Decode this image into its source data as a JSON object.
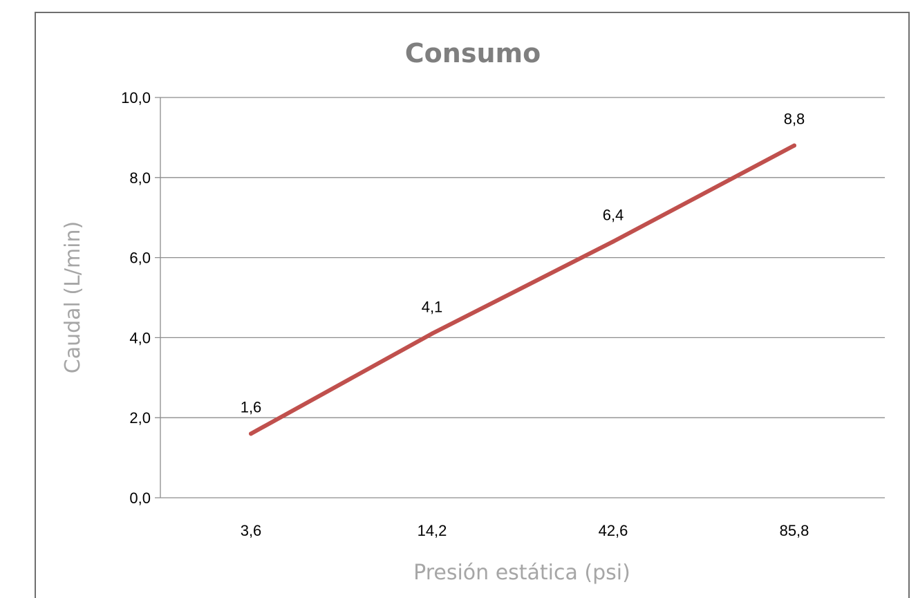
{
  "chart_data": {
    "type": "line",
    "title": "Consumo",
    "xlabel": "Presión estática (psi)",
    "ylabel": "Caudal (L/min)",
    "categories": [
      "3,6",
      "14,2",
      "42,6",
      "85,8"
    ],
    "series": [
      {
        "values": [
          1.6,
          4.1,
          6.4,
          8.8
        ],
        "data_labels": [
          "1,6",
          "4,1",
          "6,4",
          "8,8"
        ],
        "color": "#c0504d"
      }
    ],
    "ylim": [
      0,
      10
    ],
    "yticks": [
      "0,0",
      "2,0",
      "4,0",
      "6,0",
      "8,0",
      "10,0"
    ],
    "grid": true,
    "legend": "none"
  }
}
